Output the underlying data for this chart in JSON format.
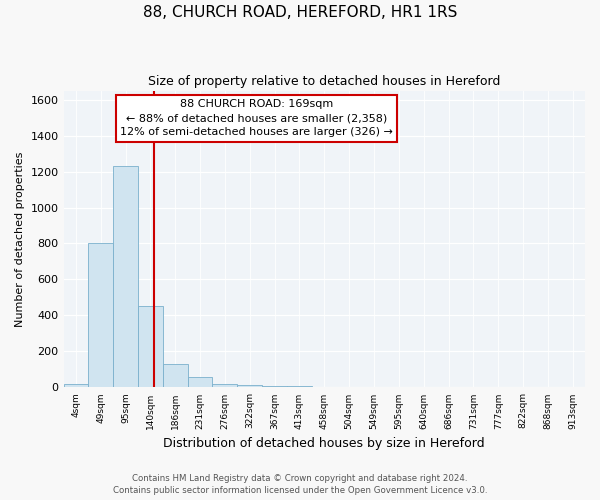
{
  "title": "88, CHURCH ROAD, HEREFORD, HR1 1RS",
  "subtitle": "Size of property relative to detached houses in Hereford",
  "xlabel": "Distribution of detached houses by size in Hereford",
  "ylabel": "Number of detached properties",
  "bar_color": "#d0e4f0",
  "bar_edge_color": "#7ab0cc",
  "redline_x": 169,
  "redline_label": "88 CHURCH ROAD: 169sqm",
  "annotation_line1": "← 88% of detached houses are smaller (2,358)",
  "annotation_line2": "12% of semi-detached houses are larger (326) →",
  "footer_line1": "Contains HM Land Registry data © Crown copyright and database right 2024.",
  "footer_line2": "Contains public sector information licensed under the Open Government Licence v3.0.",
  "bins": [
    "4sqm",
    "49sqm",
    "95sqm",
    "140sqm",
    "186sqm",
    "231sqm",
    "276sqm",
    "322sqm",
    "367sqm",
    "413sqm",
    "458sqm",
    "504sqm",
    "549sqm",
    "595sqm",
    "640sqm",
    "686sqm",
    "731sqm",
    "777sqm",
    "822sqm",
    "868sqm",
    "913sqm"
  ],
  "bin_edges": [
    4,
    49,
    95,
    140,
    186,
    231,
    276,
    322,
    367,
    413,
    458,
    504,
    549,
    595,
    640,
    686,
    731,
    777,
    822,
    868,
    913,
    958
  ],
  "counts": [
    20,
    800,
    1230,
    450,
    130,
    60,
    20,
    15,
    8,
    10,
    5,
    0,
    0,
    0,
    0,
    0,
    0,
    0,
    0,
    0,
    0
  ],
  "ylim": [
    0,
    1650
  ],
  "yticks": [
    0,
    200,
    400,
    600,
    800,
    1000,
    1200,
    1400,
    1600
  ],
  "fig_background": "#f8f8f8",
  "plot_background": "#f0f4f8"
}
